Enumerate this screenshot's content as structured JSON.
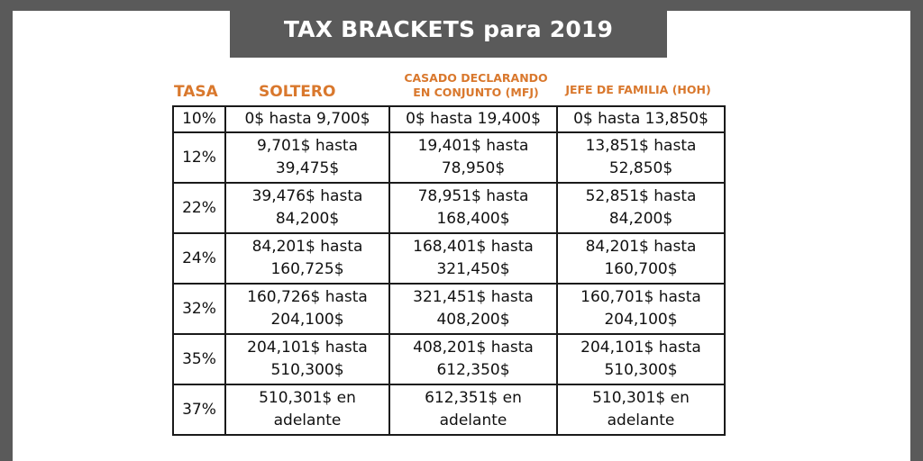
{
  "title": "TAX BRACKETS para 2019",
  "headers": {
    "tasa": "TASA",
    "soltero": "SOLTERO",
    "mfj_line1": "CASADO DECLARANDO",
    "mfj_line2": "EN CONJUNTO (MFJ)",
    "hoh": "JEFE DE FAMILIA (HOH)"
  },
  "rows": [
    {
      "rate": "10%",
      "single": "0$ hasta 9,700$",
      "mfj": "0$ hasta 19,400$",
      "hoh": "0$ hasta 13,850$"
    },
    {
      "rate": "12%",
      "single_1": "9,701$ hasta",
      "single_2": "39,475$",
      "mfj_1": "19,401$ hasta",
      "mfj_2": "78,950$",
      "hoh_1": "13,851$ hasta",
      "hoh_2": "52,850$"
    },
    {
      "rate": "22%",
      "single_1": "39,476$ hasta",
      "single_2": "84,200$",
      "mfj_1": "78,951$ hasta",
      "mfj_2": "168,400$",
      "hoh_1": "52,851$ hasta",
      "hoh_2": "84,200$"
    },
    {
      "rate": "24%",
      "single_1": "84,201$ hasta",
      "single_2": "160,725$",
      "mfj_1": "168,401$ hasta",
      "mfj_2": "321,450$",
      "hoh_1": "84,201$ hasta",
      "hoh_2": "160,700$"
    },
    {
      "rate": "32%",
      "single_1": "160,726$ hasta",
      "single_2": "204,100$",
      "mfj_1": "321,451$ hasta",
      "mfj_2": "408,200$",
      "hoh_1": "160,701$ hasta",
      "hoh_2": "204,100$"
    },
    {
      "rate": "35%",
      "single_1": "204,101$ hasta",
      "single_2": "510,300$",
      "mfj_1": "408,201$ hasta",
      "mfj_2": "612,350$",
      "hoh_1": "204,101$ hasta",
      "hoh_2": "510,300$"
    },
    {
      "rate": "37%",
      "single_1": "510,301$ en",
      "single_2": "adelante",
      "mfj_1": "612,351$ en",
      "mfj_2": "adelante",
      "hoh_1": "510,301$ en",
      "hoh_2": "adelante"
    }
  ],
  "colors": {
    "frame": "#5a5a5a",
    "header_accent": "#d9782d",
    "background": "#ffffff"
  }
}
